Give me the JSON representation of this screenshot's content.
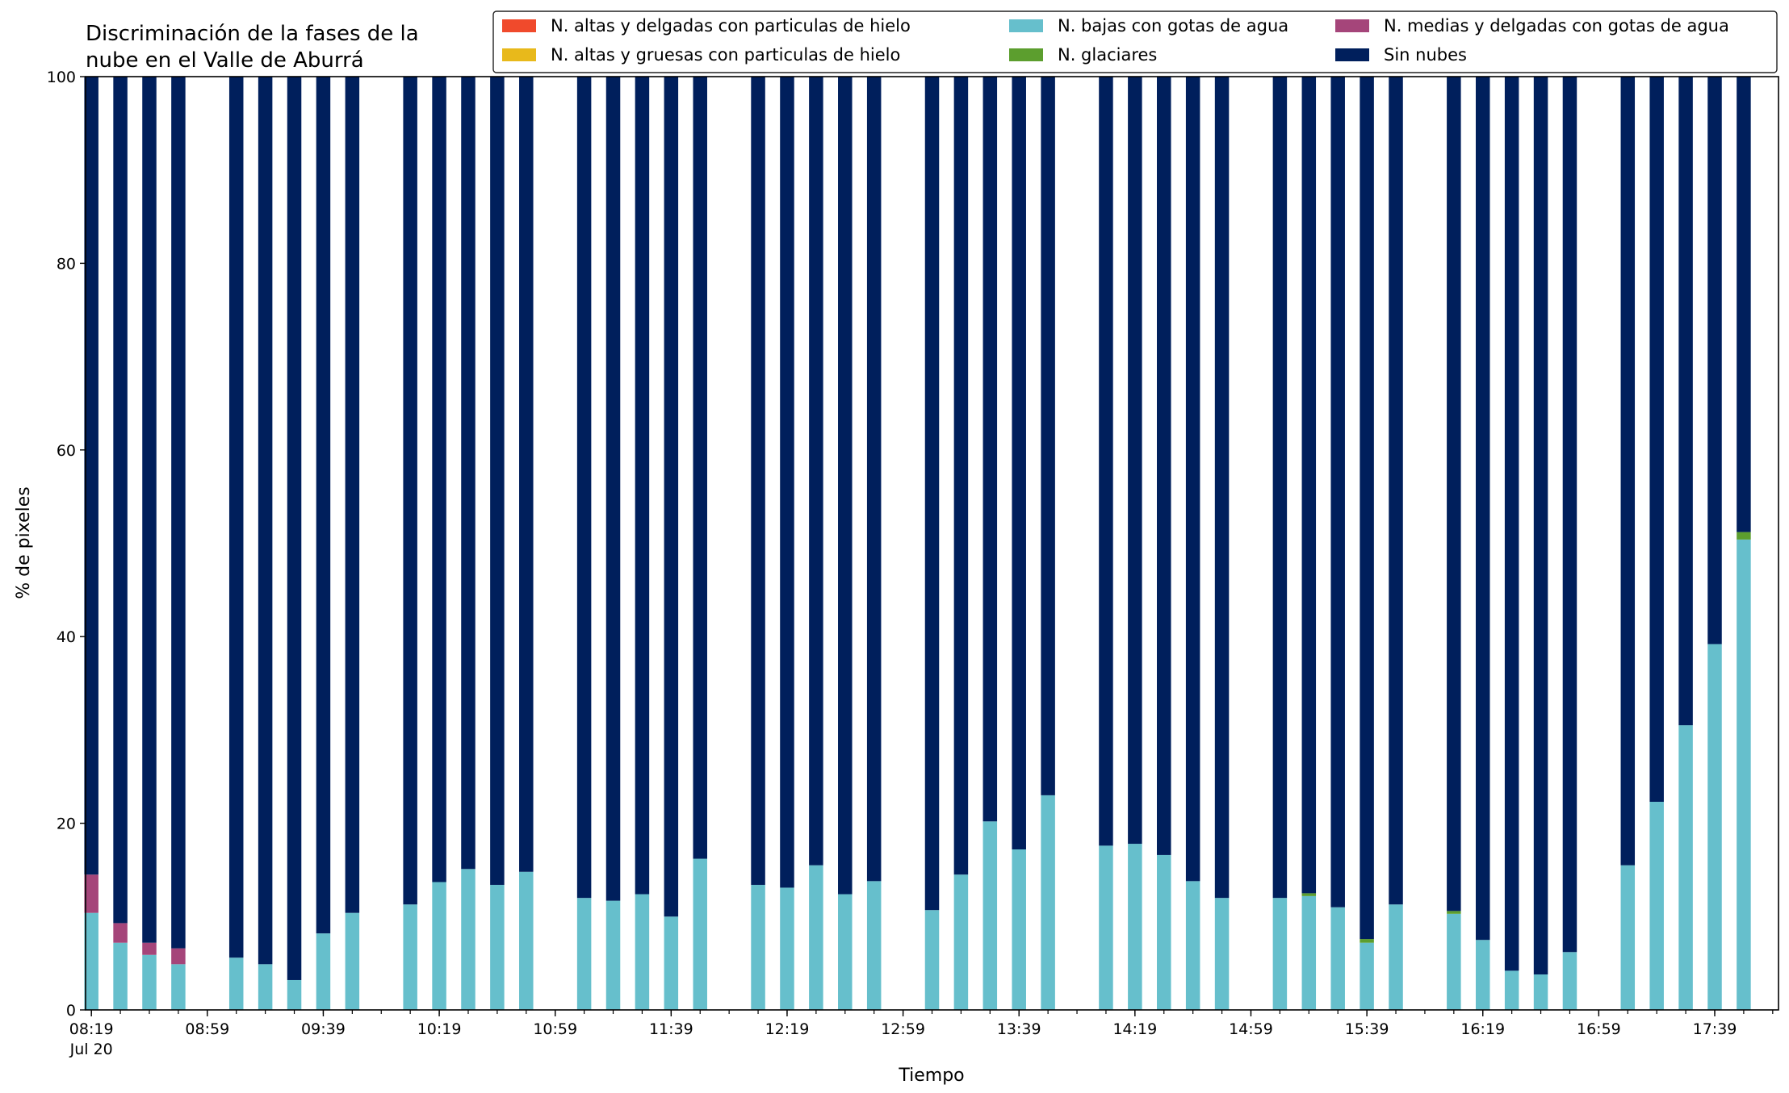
{
  "chart_data": {
    "type": "bar",
    "stacked": true,
    "title": "Discriminación de la fases de la\nnube en el Valle de Aburrá",
    "xlabel": "Tiempo",
    "ylabel": "% de pixeles",
    "ylim": [
      0,
      100
    ],
    "yticks": [
      0,
      20,
      40,
      60,
      80,
      100
    ],
    "grid": false,
    "legend_position": "top-right",
    "x_start_time": "08:19",
    "x_end_time": "17:59",
    "x_date_label": "Jul 20",
    "xtick_labels": [
      "08:19",
      "08:59",
      "09:39",
      "10:19",
      "10:59",
      "11:39",
      "12:19",
      "12:59",
      "13:39",
      "14:19",
      "14:59",
      "15:39",
      "16:19",
      "16:59",
      "17:39"
    ],
    "x": [
      "08:19",
      "08:29",
      "08:39",
      "08:49",
      "09:09",
      "09:19",
      "09:29",
      "09:39",
      "09:49",
      "10:09",
      "10:19",
      "10:29",
      "10:39",
      "10:49",
      "11:09",
      "11:19",
      "11:29",
      "11:39",
      "11:49",
      "12:09",
      "12:19",
      "12:29",
      "12:39",
      "12:49",
      "13:09",
      "13:19",
      "13:29",
      "13:39",
      "13:49",
      "14:09",
      "14:19",
      "14:29",
      "14:39",
      "14:49",
      "15:09",
      "15:19",
      "15:29",
      "15:39",
      "15:49",
      "16:09",
      "16:19",
      "16:29",
      "16:39",
      "16:49",
      "17:09",
      "17:19",
      "17:29",
      "17:39",
      "17:49"
    ],
    "series": [
      {
        "name": "N. altas y delgadas con particulas de hielo",
        "color": "#f04a2c",
        "values": [
          0,
          0,
          0,
          0,
          0,
          0,
          0,
          0,
          0,
          0,
          0,
          0,
          0,
          0,
          0,
          0,
          0,
          0,
          0,
          0,
          0,
          0,
          0,
          0,
          0,
          0,
          0,
          0,
          0,
          0,
          0,
          0,
          0,
          0,
          0,
          0,
          0,
          0,
          0,
          0,
          0,
          0,
          0,
          0,
          0,
          0,
          0,
          0,
          0
        ]
      },
      {
        "name": "N. altas y gruesas con particulas de hielo",
        "color": "#e8b91b",
        "values": [
          0,
          0,
          0,
          0,
          0,
          0,
          0,
          0,
          0,
          0,
          0,
          0,
          0,
          0,
          0,
          0,
          0,
          0,
          0,
          0,
          0,
          0,
          0,
          0,
          0,
          0,
          0,
          0,
          0,
          0,
          0,
          0,
          0,
          0,
          0,
          0,
          0,
          0,
          0,
          0,
          0,
          0,
          0,
          0,
          0,
          0,
          0,
          0,
          0
        ]
      },
      {
        "name": "N. bajas con gotas de agua",
        "color": "#66bfcc",
        "values": [
          10.4,
          7.2,
          5.9,
          4.9,
          5.6,
          4.9,
          3.2,
          8.2,
          10.4,
          11.3,
          13.7,
          15.1,
          13.4,
          14.8,
          12.0,
          11.7,
          12.4,
          10.0,
          16.2,
          13.4,
          13.1,
          15.5,
          12.4,
          13.8,
          10.7,
          14.5,
          20.2,
          17.2,
          23.0,
          17.6,
          17.8,
          16.6,
          13.8,
          12.0,
          12.0,
          12.2,
          11.0,
          7.2,
          11.3,
          10.3,
          7.5,
          4.2,
          3.8,
          6.2,
          15.5,
          22.3,
          30.5,
          39.2,
          50.4
        ]
      },
      {
        "name": "N. glaciares",
        "color": "#5c9e2e",
        "values": [
          0,
          0,
          0,
          0,
          0,
          0,
          0,
          0,
          0,
          0,
          0,
          0,
          0,
          0,
          0,
          0,
          0,
          0,
          0,
          0,
          0,
          0,
          0,
          0,
          0,
          0,
          0,
          0,
          0,
          0,
          0,
          0,
          0,
          0,
          0,
          0.3,
          0,
          0.4,
          0,
          0.3,
          0,
          0,
          0,
          0,
          0,
          0,
          0,
          0,
          0.8
        ]
      },
      {
        "name": "N. medias y delgadas con gotas de agua",
        "color": "#a5457a",
        "values": [
          4.1,
          2.1,
          1.3,
          1.7,
          0,
          0,
          0,
          0,
          0,
          0,
          0,
          0,
          0,
          0,
          0,
          0,
          0,
          0,
          0,
          0,
          0,
          0,
          0,
          0,
          0,
          0,
          0,
          0,
          0,
          0,
          0,
          0,
          0,
          0,
          0,
          0,
          0,
          0,
          0,
          0,
          0,
          0,
          0,
          0,
          0,
          0,
          0,
          0,
          0
        ]
      },
      {
        "name": "Sin nubes",
        "color": "#001f5c",
        "values": [
          85.5,
          90.7,
          92.8,
          93.4,
          94.4,
          95.1,
          96.8,
          91.8,
          89.6,
          88.7,
          86.3,
          84.9,
          86.6,
          85.2,
          88.0,
          88.3,
          87.6,
          90.0,
          83.8,
          86.6,
          86.9,
          84.5,
          87.6,
          86.2,
          89.3,
          85.5,
          79.8,
          82.8,
          77.0,
          82.4,
          82.2,
          83.4,
          86.2,
          88.0,
          88.0,
          87.5,
          89.0,
          92.4,
          88.7,
          89.4,
          92.5,
          95.8,
          96.2,
          93.8,
          84.5,
          77.7,
          69.5,
          60.8,
          48.8
        ]
      }
    ]
  }
}
